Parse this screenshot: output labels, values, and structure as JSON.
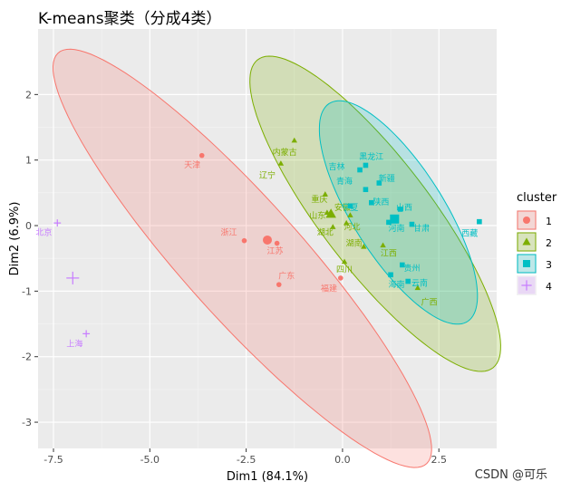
{
  "chart_data": {
    "type": "scatter",
    "title": "K-means聚类（分成4类）",
    "xlabel": "Dim1 (84.1%)",
    "ylabel": "Dim2 (6.9%)",
    "xlim": [
      -7.9,
      4.0
    ],
    "ylim": [
      -3.4,
      3.0
    ],
    "xticks": [
      -7.5,
      -5.0,
      -2.5,
      0.0,
      2.5
    ],
    "xtick_labels": [
      "-7.5",
      "-5.0",
      "-2.5",
      "0.0",
      "2.5"
    ],
    "yticks": [
      -3,
      -2,
      -1,
      0,
      1,
      2
    ],
    "ytick_labels": [
      "-3",
      "-2",
      "-1",
      "0",
      "1",
      "2"
    ],
    "grid": true,
    "legend": {
      "title": "cluster",
      "position": "right"
    },
    "clusters": [
      {
        "name": "1",
        "color": "#F8766D",
        "shape": "circle",
        "center": [
          -1.95,
          -0.22
        ],
        "ellipse": {
          "cx": -2.6,
          "cy": -0.5,
          "rx": 5.75,
          "ry": 1.12,
          "angle_deg": -32
        },
        "points": [
          {
            "label": "天津",
            "x": -3.65,
            "y": 1.07,
            "lx": -3.9,
            "ly": 0.93
          },
          {
            "label": "浙江",
            "x": -2.55,
            "y": -0.23,
            "lx": -2.95,
            "ly": -0.1
          },
          {
            "label": "江苏",
            "x": -1.7,
            "y": -0.27,
            "lx": -1.75,
            "ly": -0.39
          },
          {
            "label": "广东",
            "x": -1.65,
            "y": -0.9,
            "lx": -1.45,
            "ly": -0.77
          },
          {
            "label": "福建",
            "x": -0.05,
            "y": -0.8,
            "lx": -0.35,
            "ly": -0.96
          }
        ]
      },
      {
        "name": "2",
        "color": "#7CAE00",
        "shape": "triangle",
        "center": [
          -0.3,
          0.18
        ],
        "ellipse": {
          "cx": 0.85,
          "cy": 0.18,
          "rx": 3.9,
          "ry": 1.08,
          "angle_deg": -35
        },
        "points": [
          {
            "label": "内蒙古",
            "x": -1.25,
            "y": 1.3,
            "lx": -1.5,
            "ly": 1.12
          },
          {
            "label": "辽宁",
            "x": -1.6,
            "y": 0.95,
            "lx": -1.95,
            "ly": 0.77
          },
          {
            "label": "重庆",
            "x": -0.45,
            "y": 0.48,
            "lx": -0.6,
            "ly": 0.4
          },
          {
            "label": "山东",
            "x": -0.4,
            "y": 0.2,
            "lx": -0.65,
            "ly": 0.15
          },
          {
            "label": "湖北",
            "x": -0.25,
            "y": -0.02,
            "lx": -0.45,
            "ly": -0.1
          },
          {
            "label": "河北",
            "x": 0.1,
            "y": 0.04,
            "lx": 0.25,
            "ly": -0.02
          },
          {
            "label": "安徽",
            "x": 0.2,
            "y": 0.16,
            "lx": 0.0,
            "ly": 0.28
          },
          {
            "label": "湖南",
            "x": 0.55,
            "y": -0.32,
            "lx": 0.3,
            "ly": -0.27
          },
          {
            "label": "江西",
            "x": 1.05,
            "y": -0.3,
            "lx": 1.2,
            "ly": -0.42
          },
          {
            "label": "四川",
            "x": 0.05,
            "y": -0.55,
            "lx": 0.05,
            "ly": -0.67
          },
          {
            "label": "广西",
            "x": 1.95,
            "y": -0.95,
            "lx": 2.25,
            "ly": -1.17
          }
        ]
      },
      {
        "name": "3",
        "color": "#00BFC4",
        "shape": "square",
        "center": [
          1.35,
          0.1
        ],
        "ellipse": {
          "cx": 1.45,
          "cy": 0.2,
          "rx": 2.5,
          "ry": 0.93,
          "angle_deg": -38
        },
        "points": [
          {
            "label": "黑龙江",
            "x": 0.6,
            "y": 0.92,
            "lx": 0.75,
            "ly": 1.05
          },
          {
            "label": "吉林",
            "x": 0.45,
            "y": 0.85,
            "lx": -0.15,
            "ly": 0.9
          },
          {
            "label": "新疆",
            "x": 0.95,
            "y": 0.65,
            "lx": 1.15,
            "ly": 0.72
          },
          {
            "label": "青海",
            "x": 0.6,
            "y": 0.55,
            "lx": 0.05,
            "ly": 0.68
          },
          {
            "label": "宁夏",
            "x": 0.2,
            "y": 0.3,
            "lx": 0.2,
            "ly": 0.28
          },
          {
            "label": "陕西",
            "x": 0.75,
            "y": 0.35,
            "lx": 1.0,
            "ly": 0.36
          },
          {
            "label": "山西",
            "x": 1.5,
            "y": 0.25,
            "lx": 1.6,
            "ly": 0.28
          },
          {
            "label": "河南",
            "x": 1.2,
            "y": 0.05,
            "lx": 1.4,
            "ly": -0.04
          },
          {
            "label": "甘肃",
            "x": 1.8,
            "y": 0.02,
            "lx": 2.05,
            "ly": -0.04
          },
          {
            "label": "西藏",
            "x": 3.55,
            "y": 0.06,
            "lx": 3.3,
            "ly": -0.12
          },
          {
            "label": "贵州",
            "x": 1.55,
            "y": -0.6,
            "lx": 1.8,
            "ly": -0.65
          },
          {
            "label": "云南",
            "x": 1.7,
            "y": -0.85,
            "lx": 2.0,
            "ly": -0.88
          },
          {
            "label": "海南",
            "x": 1.25,
            "y": -0.75,
            "lx": 1.4,
            "ly": -0.9
          }
        ]
      },
      {
        "name": "4",
        "color": "#C77CFF",
        "shape": "cross",
        "center": [
          -7.0,
          -0.8
        ],
        "points": [
          {
            "label": "北京",
            "x": -7.4,
            "y": 0.04,
            "lx": -7.75,
            "ly": -0.1
          },
          {
            "label": "上海",
            "x": -6.65,
            "y": -1.65,
            "lx": -6.95,
            "ly": -1.8
          }
        ]
      }
    ]
  },
  "watermark": "CSDN @可乐"
}
